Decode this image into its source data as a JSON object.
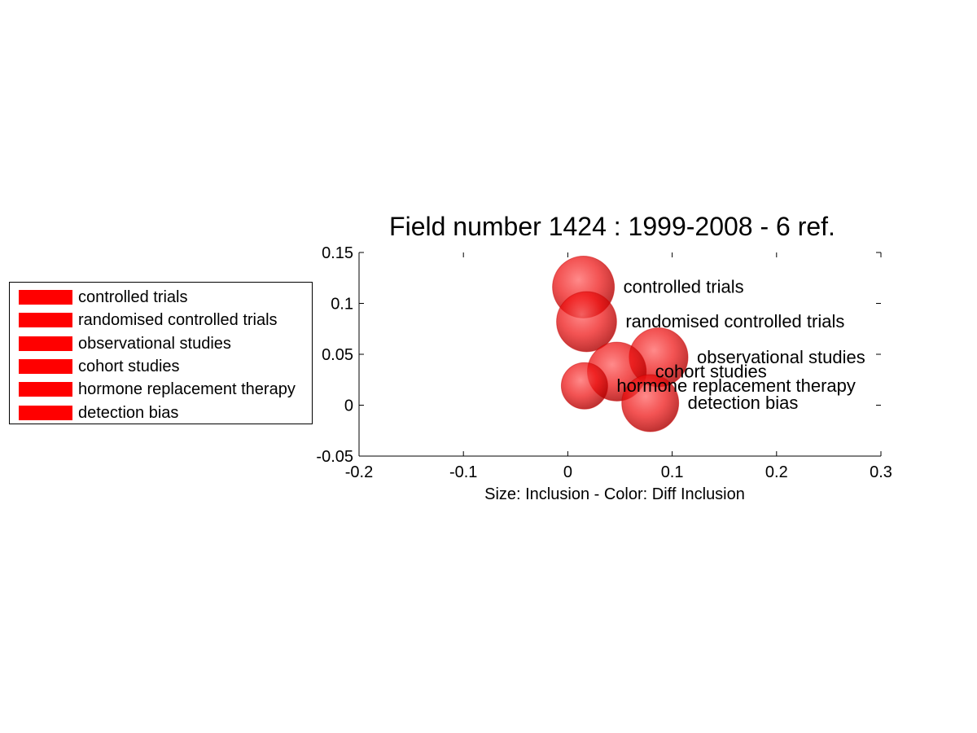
{
  "chart_data": {
    "type": "scatter",
    "title": "Field number 1424 : 1999-2008  - 6 ref.",
    "xlabel": "Size: Inclusion - Color: Diff Inclusion",
    "ylabel": "",
    "xlim": [
      -0.2,
      0.3
    ],
    "ylim": [
      -0.05,
      0.15
    ],
    "xticks": [
      "-0.2",
      "-0.1",
      "0",
      "0.1",
      "0.2",
      "0.3"
    ],
    "yticks": [
      "0.15",
      "0.1",
      "0.05",
      "0",
      "-0.05"
    ],
    "grid": false,
    "legend_position": "left",
    "marker_color": "#ee0000",
    "size_variable": "Inclusion",
    "color_variable": "Diff Inclusion",
    "points": [
      {
        "label": "controlled trials",
        "x": 0.015,
        "y": 0.116,
        "size": 1.0
      },
      {
        "label": "randomised controlled trials",
        "x": 0.018,
        "y": 0.082,
        "size": 0.97
      },
      {
        "label": "observational studies",
        "x": 0.087,
        "y": 0.047,
        "size": 0.95
      },
      {
        "label": "cohort studies",
        "x": 0.047,
        "y": 0.033,
        "size": 0.95
      },
      {
        "label": "hormone replacement therapy",
        "x": 0.016,
        "y": 0.019,
        "size": 0.75
      },
      {
        "label": "detection bias",
        "x": 0.079,
        "y": 0.002,
        "size": 0.92
      }
    ]
  }
}
